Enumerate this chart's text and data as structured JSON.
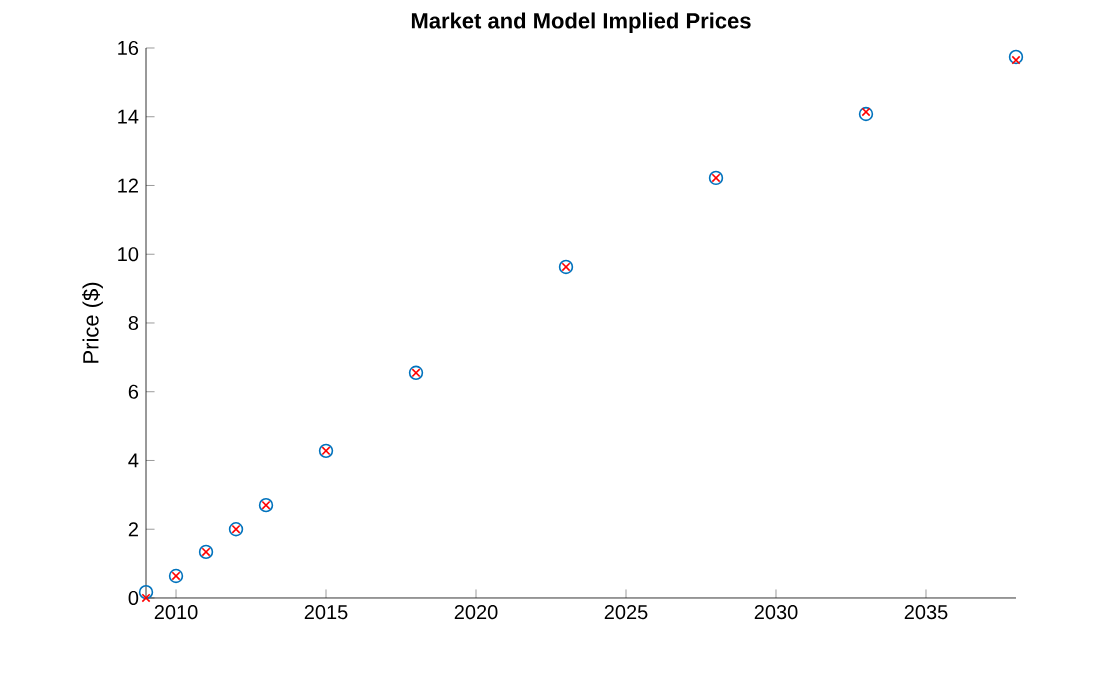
{
  "chart_data": {
    "type": "scatter",
    "title": "Market and Model Implied Prices",
    "ylabel": "Price ($)",
    "x": [
      2009,
      2010,
      2011,
      2012,
      2013,
      2015,
      2018,
      2023,
      2028,
      2033,
      2038
    ],
    "series": [
      {
        "color": "#0072bd",
        "marker": "circle",
        "values": [
          0.17,
          0.64,
          1.34,
          2.0,
          2.7,
          4.28,
          6.55,
          9.63,
          12.22,
          14.08,
          15.74
        ]
      },
      {
        "color": "#ff0000",
        "marker": "cross",
        "values": [
          0,
          0.64,
          1.34,
          2.0,
          2.7,
          4.28,
          6.55,
          9.63,
          12.22,
          14.14,
          15.65
        ]
      }
    ],
    "xlim": [
      2009,
      2038
    ],
    "ylim": [
      0,
      16
    ],
    "xticks": [
      2010,
      2015,
      2020,
      2025,
      2030,
      2035
    ],
    "yticks": [
      0,
      2,
      4,
      6,
      8,
      10,
      12,
      14,
      16
    ],
    "grid": false
  }
}
